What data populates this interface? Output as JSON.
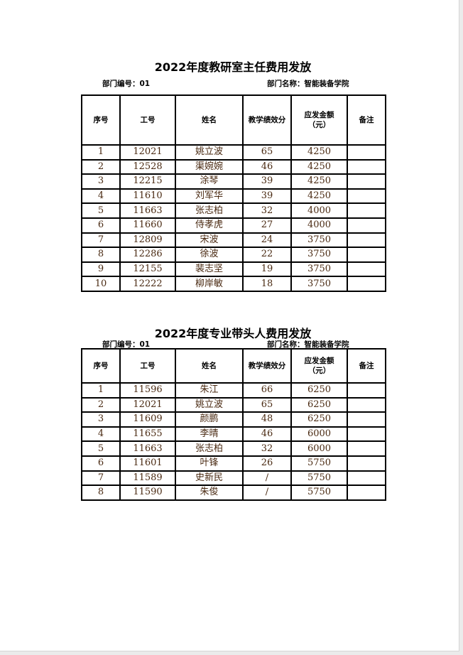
{
  "headers": [
    "序号",
    "工号",
    "姓名",
    "教学绩效分",
    "应发金额\n（元）",
    "备注"
  ],
  "tables": [
    {
      "title": "2022年度教研室主任费用发放",
      "dept_code": "部门编号：01",
      "dept_name": "部门名称：智能装备学院",
      "rows": [
        [
          "1",
          "12021",
          "姚立波",
          "65",
          "4250",
          ""
        ],
        [
          "2",
          "12528",
          "渠婉婉",
          "46",
          "4250",
          ""
        ],
        [
          "3",
          "12215",
          "涂琴",
          "39",
          "4250",
          ""
        ],
        [
          "4",
          "11610",
          "刘军华",
          "39",
          "4250",
          ""
        ],
        [
          "5",
          "11663",
          "张志柏",
          "32",
          "4000",
          ""
        ],
        [
          "6",
          "11660",
          "侍孝虎",
          "27",
          "4000",
          ""
        ],
        [
          "7",
          "12809",
          "宋波",
          "24",
          "3750",
          ""
        ],
        [
          "8",
          "12286",
          "徐波",
          "22",
          "3750",
          ""
        ],
        [
          "9",
          "12155",
          "裴志坚",
          "19",
          "3750",
          ""
        ],
        [
          "10",
          "12222",
          "柳岸敏",
          "18",
          "3750",
          ""
        ]
      ]
    },
    {
      "title": "2022年度专业带头人费用发放",
      "dept_code": "部门编号：01",
      "dept_name": "部门名称：智能装备学院",
      "rows": [
        [
          "1",
          "11596",
          "朱江",
          "66",
          "6250",
          ""
        ],
        [
          "2",
          "12021",
          "姚立波",
          "65",
          "6250",
          ""
        ],
        [
          "3",
          "11609",
          "颜鹏",
          "48",
          "6250",
          ""
        ],
        [
          "4",
          "11655",
          "李晴",
          "46",
          "6000",
          ""
        ],
        [
          "5",
          "11663",
          "张志柏",
          "32",
          "6000",
          ""
        ],
        [
          "6",
          "11601",
          "叶锋",
          "26",
          "5750",
          ""
        ],
        [
          "7",
          "11589",
          "史新民",
          "/",
          "5750",
          ""
        ],
        [
          "8",
          "11590",
          "朱俊",
          "/",
          "5750",
          ""
        ]
      ]
    }
  ]
}
